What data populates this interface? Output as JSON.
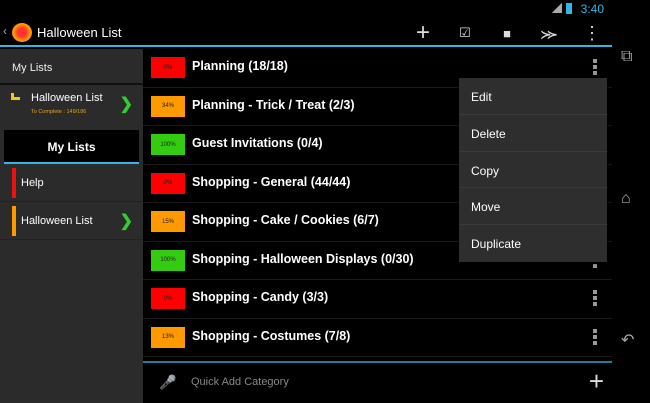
{
  "status": {
    "time": "3:40"
  },
  "actionbar": {
    "title": "Halloween List",
    "icons": [
      "add-icon",
      "checkbox-icon",
      "square-icon",
      "share-icon",
      "overflow-icon"
    ]
  },
  "sidebar": {
    "header": "My Lists",
    "current": {
      "name": "Halloween List",
      "sub": "To Complete : 149/186"
    },
    "tab": "My Lists",
    "items": [
      {
        "label": "Help",
        "color": "#e11"
      },
      {
        "label": "Halloween List",
        "color": "#f90"
      }
    ]
  },
  "rows": [
    {
      "pct": "0%",
      "title": "Planning (18/18)",
      "color": "#f00"
    },
    {
      "pct": "34%",
      "title": "Planning - Trick / Treat (2/3)",
      "color": "#f90"
    },
    {
      "pct": "100%",
      "title": "Guest Invitations (0/4)",
      "color": "#3c1"
    },
    {
      "pct": "0%",
      "title": "Shopping - General (44/44)",
      "color": "#f00"
    },
    {
      "pct": "15%",
      "title": "Shopping - Cake / Cookies (6/7)",
      "color": "#f90"
    },
    {
      "pct": "100%",
      "title": "Shopping - Halloween Displays (0/30)",
      "color": "#3c1"
    },
    {
      "pct": "0%",
      "title": "Shopping - Candy (3/3)",
      "color": "#f00"
    },
    {
      "pct": "13%",
      "title": "Shopping - Costumes (7/8)",
      "color": "#f90"
    }
  ],
  "menu": [
    "Edit",
    "Delete",
    "Copy",
    "Move",
    "Duplicate"
  ],
  "quickadd": {
    "placeholder": "Quick Add Category"
  }
}
